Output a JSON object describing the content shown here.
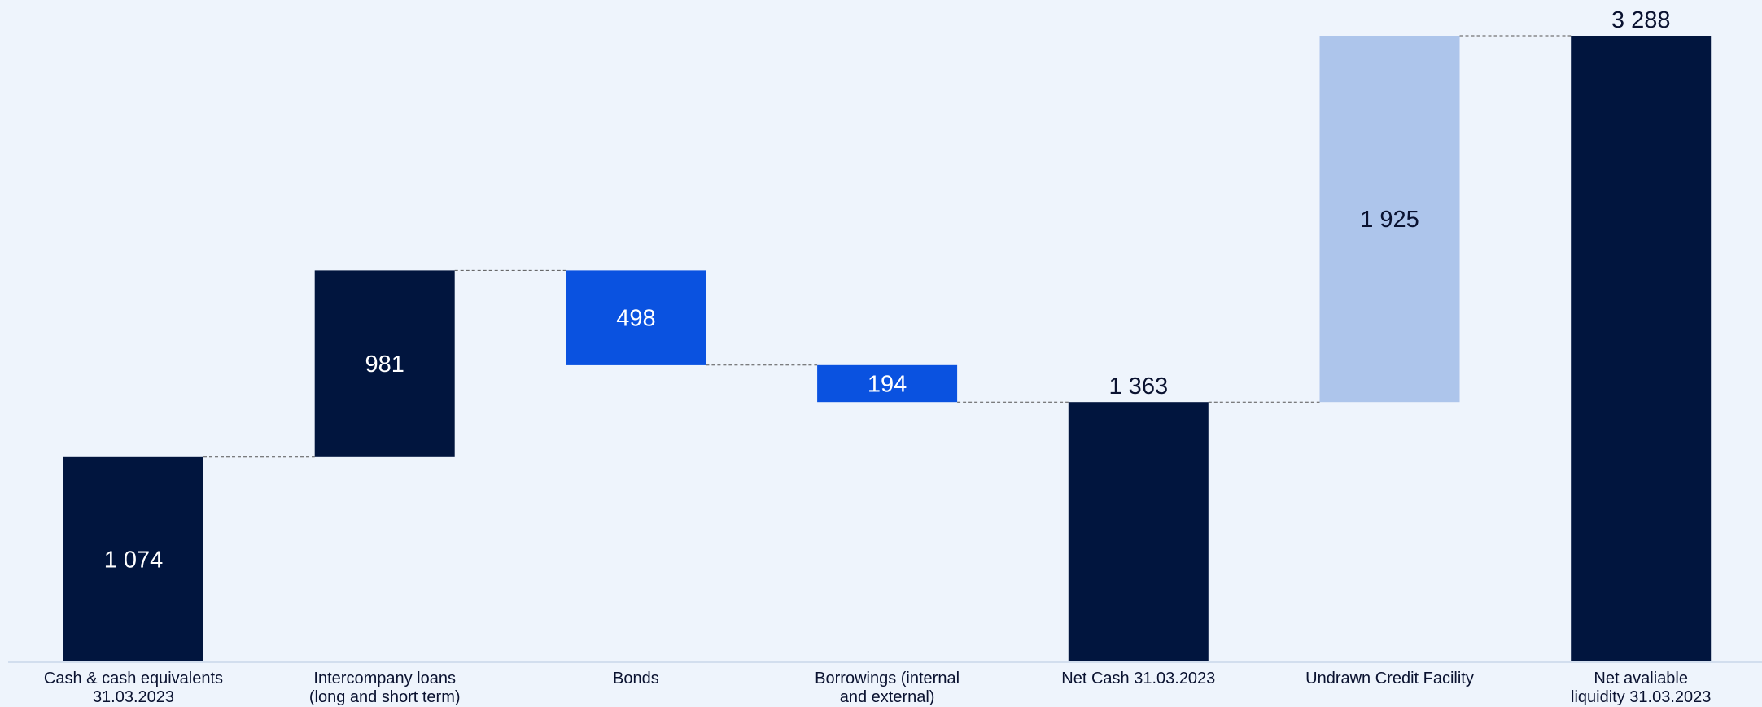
{
  "chart_data": {
    "type": "waterfall",
    "title": "",
    "xlabel": "",
    "ylabel": "",
    "ylim": [
      0,
      3288
    ],
    "grid": false,
    "legend": "none",
    "colors": {
      "total": "#01153e",
      "increase": "#01153e",
      "decrease": "#0a52e0",
      "facility": "#adc5eb",
      "background": "#eef4fc",
      "connector": "#555555",
      "axis": "#c9d6ea"
    },
    "steps": [
      {
        "category": [
          "Cash & cash equivalents",
          "31.03.2023"
        ],
        "value": 1074,
        "label": "1 074",
        "kind": "total",
        "start": 0,
        "end": 1074
      },
      {
        "category": [
          "Intercompany loans",
          "(long and short term)"
        ],
        "value": 981,
        "label": "981",
        "kind": "increase",
        "start": 1074,
        "end": 2055
      },
      {
        "category": [
          "Bonds"
        ],
        "value": -498,
        "label": "498",
        "kind": "decrease",
        "start": 2055,
        "end": 1557
      },
      {
        "category": [
          "Borrowings (internal",
          "and external)"
        ],
        "value": -194,
        "label": "194",
        "kind": "decrease",
        "start": 1557,
        "end": 1363
      },
      {
        "category": [
          "Net Cash 31.03.2023"
        ],
        "value": 1363,
        "label": "1 363",
        "kind": "total",
        "start": 0,
        "end": 1363
      },
      {
        "category": [
          "Undrawn Credit Facility"
        ],
        "value": 1925,
        "label": "1 925",
        "kind": "facility",
        "start": 1363,
        "end": 3288
      },
      {
        "category": [
          "Net avaliable",
          "liquidity 31.03.2023"
        ],
        "value": 3288,
        "label": "3 288",
        "kind": "total",
        "start": 0,
        "end": 3288
      }
    ]
  }
}
